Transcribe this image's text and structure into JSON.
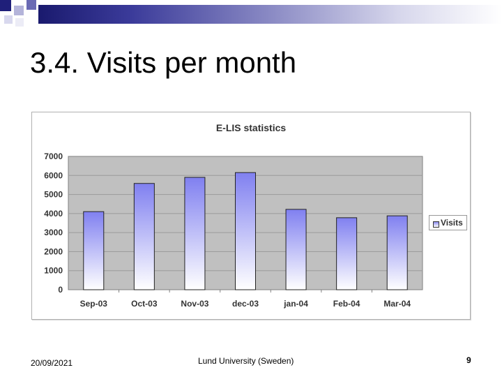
{
  "slide": {
    "title": "3.4. Visits per month",
    "footer_date": "20/09/2021",
    "footer_center": "Lund University (Sweden)",
    "page_number": "9"
  },
  "colors": {
    "plot_background": "#c0c0c0",
    "bar_top": "#8080f0",
    "bar_bottom": "#ffffff",
    "band_dark": "#1a1a6e"
  },
  "chart_data": {
    "type": "bar",
    "title": "E-LIS statistics",
    "categories": [
      "Sep-03",
      "Oct-03",
      "Nov-03",
      "dec-03",
      "jan-04",
      "Feb-04",
      "Mar-04"
    ],
    "series": [
      {
        "name": "Visits",
        "values": [
          4100,
          5580,
          5900,
          6150,
          4220,
          3780,
          3880
        ]
      }
    ],
    "xlabel": "",
    "ylabel": "",
    "ylim": [
      0,
      7000
    ],
    "yticks": [
      0,
      1000,
      2000,
      3000,
      4000,
      5000,
      6000,
      7000
    ],
    "grid": true,
    "legend": "right"
  }
}
